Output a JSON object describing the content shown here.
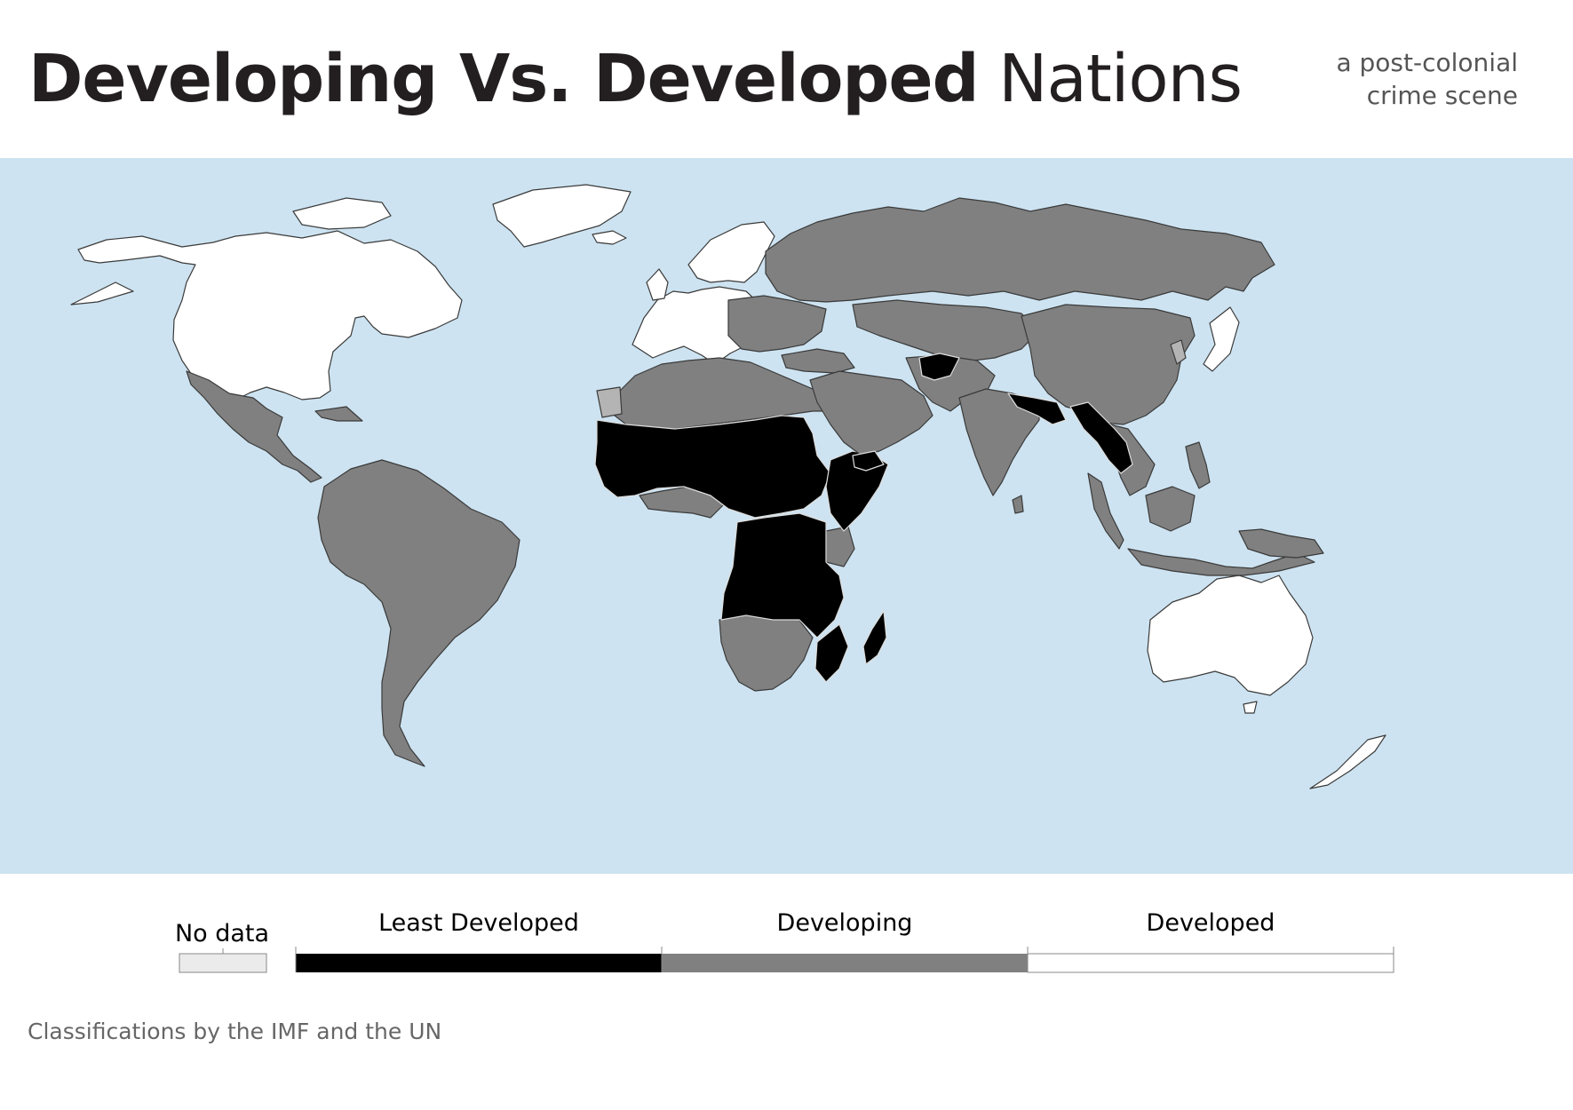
{
  "header": {
    "title_bold": "Developing Vs. Developed",
    "title_light": "Nations",
    "subtitle_line1": "a post-colonial",
    "subtitle_line2": "crime scene"
  },
  "colors": {
    "ocean": "#cde3f1",
    "least_developed": "#000000",
    "developing": "#808080",
    "developed": "#ffffff",
    "no_data": "#ebebeb",
    "no_data_map": "#b4b4b4",
    "border": "#3a3a3a"
  },
  "legend": {
    "no_data": "No data",
    "categories": [
      "Least Developed",
      "Developing",
      "Developed"
    ]
  },
  "footnote": "Classifications by the IMF and the UN"
}
